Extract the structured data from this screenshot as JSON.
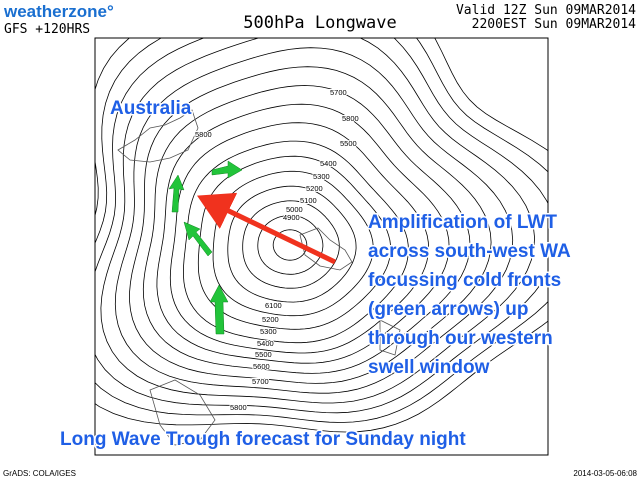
{
  "header": {
    "logo": "weatherzone°",
    "model": "GFS +120HRS",
    "title": "500hPa Longwave",
    "valid_lines": [
      "Valid 12Z Sun 09MAR2014",
      "2200EST Sun 09MAR2014"
    ]
  },
  "map": {
    "region_label": "Australia",
    "contour_labels": [
      5700,
      5800,
      5800,
      5500,
      5400,
      5300,
      5200,
      5100,
      5000,
      4900,
      6100,
      5200,
      5300,
      5400,
      5500,
      5600,
      5700,
      5800
    ]
  },
  "annotation": {
    "lines": [
      "Amplification of LWT",
      "across south-west WA",
      "focussing cold fronts",
      "(green arrows) up",
      "through our western",
      "swell window"
    ]
  },
  "caption": "Long Wave Trough forecast for Sunday night",
  "footer": {
    "left": "GrADS: COLA/IGES",
    "right": "2014-03-05-06:08"
  }
}
